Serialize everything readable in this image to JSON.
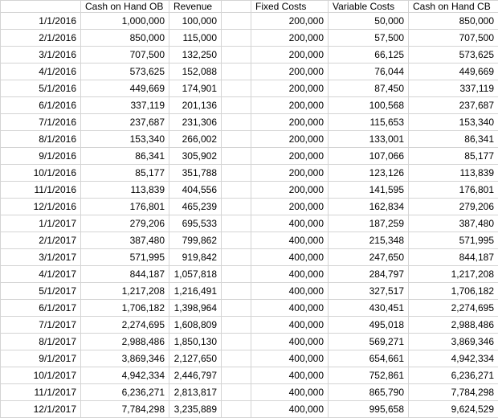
{
  "sheet": {
    "header": [
      "",
      "Cash on Hand OB",
      "Revenue",
      "Fixed Costs",
      "Variable Costs",
      "Cash on Hand CB"
    ],
    "rows": [
      [
        "1/1/2016",
        "1,000,000",
        "100,000",
        "200,000",
        "50,000",
        "850,000"
      ],
      [
        "2/1/2016",
        "850,000",
        "115,000",
        "200,000",
        "57,500",
        "707,500"
      ],
      [
        "3/1/2016",
        "707,500",
        "132,250",
        "200,000",
        "66,125",
        "573,625"
      ],
      [
        "4/1/2016",
        "573,625",
        "152,088",
        "200,000",
        "76,044",
        "449,669"
      ],
      [
        "5/1/2016",
        "449,669",
        "174,901",
        "200,000",
        "87,450",
        "337,119"
      ],
      [
        "6/1/2016",
        "337,119",
        "201,136",
        "200,000",
        "100,568",
        "237,687"
      ],
      [
        "7/1/2016",
        "237,687",
        "231,306",
        "200,000",
        "115,653",
        "153,340"
      ],
      [
        "8/1/2016",
        "153,340",
        "266,002",
        "200,000",
        "133,001",
        "86,341"
      ],
      [
        "9/1/2016",
        "86,341",
        "305,902",
        "200,000",
        "107,066",
        "85,177"
      ],
      [
        "10/1/2016",
        "85,177",
        "351,788",
        "200,000",
        "123,126",
        "113,839"
      ],
      [
        "11/1/2016",
        "113,839",
        "404,556",
        "200,000",
        "141,595",
        "176,801"
      ],
      [
        "12/1/2016",
        "176,801",
        "465,239",
        "200,000",
        "162,834",
        "279,206"
      ],
      [
        "1/1/2017",
        "279,206",
        "695,533",
        "400,000",
        "187,259",
        "387,480"
      ],
      [
        "2/1/2017",
        "387,480",
        "799,862",
        "400,000",
        "215,348",
        "571,995"
      ],
      [
        "3/1/2017",
        "571,995",
        "919,842",
        "400,000",
        "247,650",
        "844,187"
      ],
      [
        "4/1/2017",
        "844,187",
        "1,057,818",
        "400,000",
        "284,797",
        "1,217,208"
      ],
      [
        "5/1/2017",
        "1,217,208",
        "1,216,491",
        "400,000",
        "327,517",
        "1,706,182"
      ],
      [
        "6/1/2017",
        "1,706,182",
        "1,398,964",
        "400,000",
        "430,451",
        "2,274,695"
      ],
      [
        "7/1/2017",
        "2,274,695",
        "1,608,809",
        "400,000",
        "495,018",
        "2,988,486"
      ],
      [
        "8/1/2017",
        "2,988,486",
        "1,850,130",
        "400,000",
        "569,271",
        "3,869,346"
      ],
      [
        "9/1/2017",
        "3,869,346",
        "2,127,650",
        "400,000",
        "654,661",
        "4,942,334"
      ],
      [
        "10/1/2017",
        "4,942,334",
        "2,446,797",
        "400,000",
        "752,861",
        "6,236,271"
      ],
      [
        "11/1/2017",
        "6,236,271",
        "2,813,817",
        "400,000",
        "865,790",
        "7,784,298"
      ],
      [
        "12/1/2017",
        "7,784,298",
        "3,235,889",
        "400,000",
        "995,658",
        "9,624,529"
      ]
    ]
  },
  "colors": {
    "background": "#ffffff",
    "gridline": "#d4d4d4",
    "text": "#000000"
  }
}
